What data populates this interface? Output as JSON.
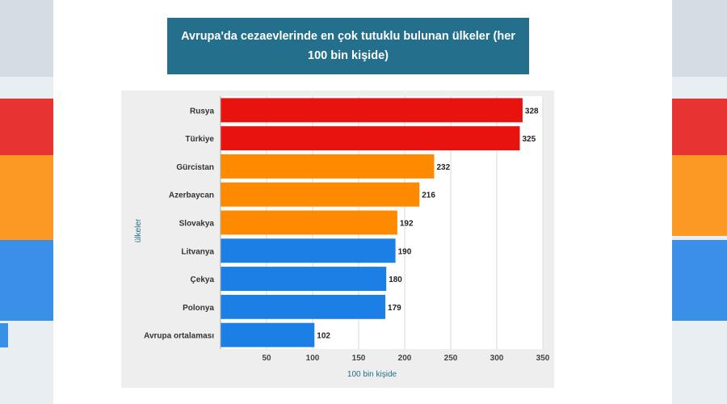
{
  "colors": {
    "red": "#e8130f",
    "orange": "#ff8a00",
    "blue": "#1b7fe5",
    "title_bg": "#236f8c"
  },
  "chart_data": {
    "type": "bar",
    "orientation": "horizontal",
    "title": "Avrupa'da cezaevlerinde en çok tutuklu bulunan ülkeler (her 100 bin kişide)",
    "xlabel": "100 bin kişide",
    "ylabel": "ülkeler",
    "categories": [
      "Rusya",
      "Türkiye",
      "Gürcistan",
      "Azerbaycan",
      "Slovakya",
      "Litvanya",
      "Çekya",
      "Polonya",
      "Avrupa ortalaması"
    ],
    "values": [
      328,
      325,
      232,
      216,
      192,
      190,
      180,
      179,
      102
    ],
    "bar_colors": [
      "red",
      "red",
      "orange",
      "orange",
      "orange",
      "blue",
      "blue",
      "blue",
      "blue"
    ],
    "xlim": [
      0,
      350
    ],
    "x_ticks": [
      50,
      100,
      150,
      200,
      250,
      300,
      350
    ],
    "grid": true,
    "legend": "none"
  }
}
